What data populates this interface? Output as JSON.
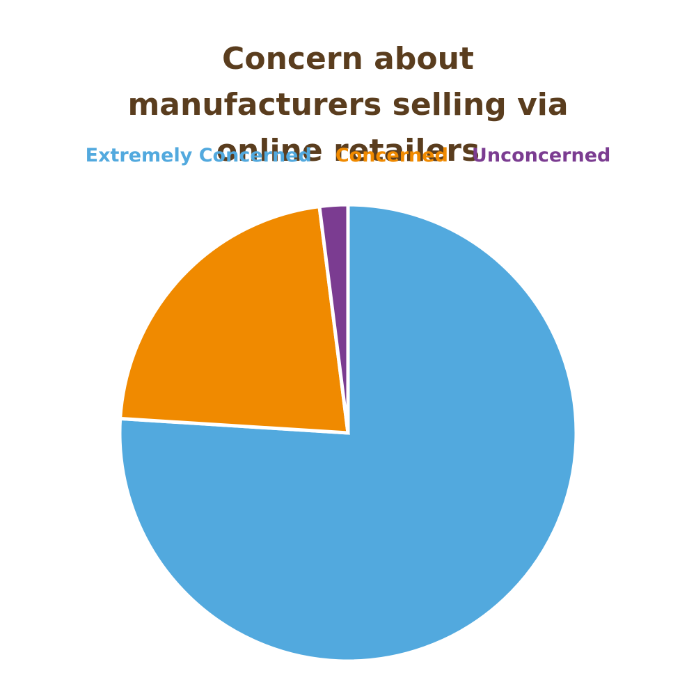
{
  "chart_data": {
    "type": "pie",
    "title": "Concern about manufacturers selling via online retailers",
    "categories": [
      "Extremely Concerned",
      "Concerned",
      "Unconcerned"
    ],
    "values": [
      76,
      22,
      2
    ],
    "colors": [
      "#52a9de",
      "#f08a00",
      "#7b3c91"
    ],
    "legend": "top"
  }
}
